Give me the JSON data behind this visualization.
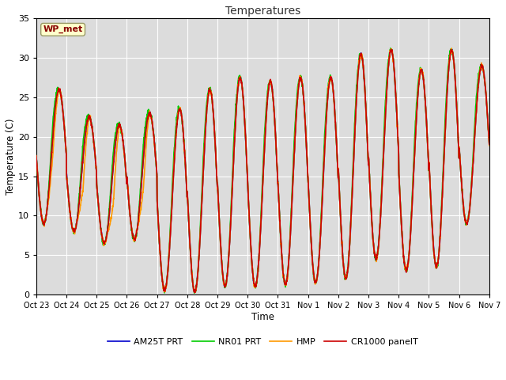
{
  "title": "Temperatures",
  "xlabel": "Time",
  "ylabel": "Temperature (C)",
  "ylim": [
    0,
    35
  ],
  "yticks": [
    0,
    5,
    10,
    15,
    20,
    25,
    30,
    35
  ],
  "x_tick_labels": [
    "Oct 23",
    "Oct 24",
    "Oct 25",
    "Oct 26",
    "Oct 27",
    "Oct 28",
    "Oct 29",
    "Oct 30",
    "Oct 31",
    "Nov 1",
    "Nov 2",
    "Nov 3",
    "Nov 4",
    "Nov 5",
    "Nov 6",
    "Nov 7"
  ],
  "colors": {
    "CR1000": "#cc0000",
    "HMP": "#ff9900",
    "NR01": "#00cc00",
    "AM25T": "#0000cc"
  },
  "legend_labels": [
    "CR1000 panelT",
    "HMP",
    "NR01 PRT",
    "AM25T PRT"
  ],
  "station_label": "WP_met",
  "background_color": "#dcdcdc",
  "figure_background": "#ffffff",
  "grid_color": "#ffffff",
  "daily_mins": [
    9.0,
    8.0,
    6.5,
    7.0,
    0.5,
    0.3,
    1.0,
    1.0,
    1.3,
    1.5,
    2.0,
    4.5,
    3.0,
    3.5,
    9.0
  ],
  "daily_maxs": [
    26.0,
    22.5,
    21.5,
    23.0,
    23.5,
    26.0,
    27.5,
    27.0,
    27.5,
    27.5,
    30.5,
    31.0,
    28.5,
    31.0,
    29.0
  ],
  "hmp_day_offsets": [
    -2.5,
    -4.0,
    -5.0,
    -4.0,
    0.0,
    0.0,
    0.0,
    0.0,
    0.0,
    0.0,
    0.0,
    0.0,
    0.0,
    0.0,
    0.0
  ],
  "nr01_peak_bonus": 1.8,
  "figsize": [
    6.4,
    4.8
  ],
  "dpi": 100
}
